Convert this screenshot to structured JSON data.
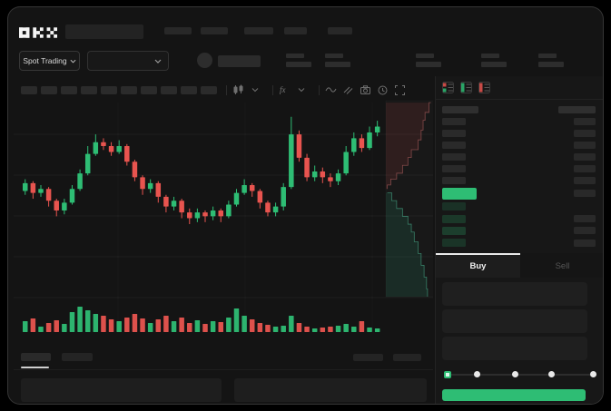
{
  "app": {
    "logo_text": "OKX"
  },
  "header": {
    "nav_placeholder_count": 5
  },
  "market_bar": {
    "market_selector_label": "Spot Trading",
    "stat_group_count": 5
  },
  "toolbar": {
    "placeholder_count": 10,
    "icons": [
      "candles-icon",
      "chevron-down-icon",
      "indicator-icon",
      "chevron-down-icon",
      "wave-icon",
      "draw-icon",
      "camera-icon",
      "clock-icon",
      "expand-icon"
    ],
    "separators_after": [
      1,
      3
    ]
  },
  "orderbook": {
    "mode_icons": [
      "book-both-icon",
      "book-bids-icon",
      "book-asks-icon"
    ],
    "ask_row_count": 6,
    "bid_row_count": 4,
    "bid_rows_with_amount": [
      1,
      2,
      3
    ],
    "bid_row_opacities": [
      0.16,
      0.2,
      0.24,
      0.18
    ],
    "last_price_color": "#2ebd74"
  },
  "trade_panel": {
    "tabs": [
      {
        "label": "Buy",
        "active": true
      },
      {
        "label": "Sell",
        "active": false
      }
    ],
    "input_count": 3,
    "slider": {
      "stops": 5,
      "active_stop": 0
    },
    "submit_color": "#2ebd74"
  },
  "bottom_bar": {
    "tab_placeholder_count": 2,
    "right_placeholder_count": 2,
    "panel_count": 2
  },
  "colors": {
    "up": "#2ebd74",
    "down": "#e8544f",
    "background": "#000000",
    "window": "#141414",
    "panel": "#171717",
    "placeholder": "#2a2a2a",
    "text": "#e8e8e8",
    "muted": "#565656",
    "depth_ask_fill": "rgba(190,70,70,0.14)",
    "depth_ask_line": "rgba(228,120,120,0.5)",
    "depth_bid_fill": "rgba(46,189,140,0.13)",
    "depth_bid_line": "rgba(80,200,160,0.55)"
  },
  "chart_data": [
    {
      "type": "candlestick",
      "title": "",
      "xlabel": "",
      "ylabel": "",
      "note": "no axis labels visible in mock; prices are unitless 0-100 estimates",
      "ylim": [
        30,
        100
      ],
      "candles_ohlc": [
        [
          57,
          63,
          55,
          61
        ],
        [
          61,
          62,
          53,
          56
        ],
        [
          56,
          60,
          54,
          58
        ],
        [
          58,
          59,
          49,
          52
        ],
        [
          52,
          53,
          44,
          47
        ],
        [
          47,
          53,
          45,
          51
        ],
        [
          51,
          60,
          50,
          58
        ],
        [
          58,
          68,
          57,
          66
        ],
        [
          66,
          80,
          65,
          76
        ],
        [
          76,
          86,
          75,
          82
        ],
        [
          82,
          84,
          78,
          80
        ],
        [
          80,
          82,
          75,
          77
        ],
        [
          77,
          83,
          76,
          80
        ],
        [
          80,
          81,
          70,
          72
        ],
        [
          72,
          73,
          62,
          64
        ],
        [
          64,
          65,
          55,
          58
        ],
        [
          58,
          63,
          56,
          61
        ],
        [
          61,
          62,
          51,
          54
        ],
        [
          54,
          55,
          46,
          49
        ],
        [
          49,
          54,
          47,
          52
        ],
        [
          52,
          53,
          43,
          46
        ],
        [
          46,
          48,
          40,
          43
        ],
        [
          43,
          48,
          41,
          46
        ],
        [
          46,
          47,
          41,
          44
        ],
        [
          44,
          49,
          42,
          47
        ],
        [
          47,
          48,
          41,
          44
        ],
        [
          44,
          52,
          43,
          50
        ],
        [
          50,
          58,
          49,
          56
        ],
        [
          56,
          63,
          55,
          60
        ],
        [
          60,
          61,
          54,
          57
        ],
        [
          57,
          58,
          48,
          51
        ],
        [
          51,
          52,
          44,
          46
        ],
        [
          46,
          51,
          44,
          49
        ],
        [
          49,
          61,
          47,
          59
        ],
        [
          59,
          95,
          58,
          86
        ],
        [
          86,
          88,
          72,
          74
        ],
        [
          74,
          76,
          62,
          64
        ],
        [
          64,
          70,
          62,
          67
        ],
        [
          67,
          69,
          61,
          64
        ],
        [
          64,
          66,
          59,
          62
        ],
        [
          62,
          68,
          60,
          66
        ],
        [
          66,
          80,
          65,
          77
        ],
        [
          77,
          87,
          75,
          84
        ],
        [
          84,
          86,
          77,
          79
        ],
        [
          79,
          90,
          78,
          87
        ],
        [
          87,
          93,
          85,
          90
        ]
      ]
    },
    {
      "type": "bar",
      "name": "volume",
      "note": "unitless heights, colored by candle direction",
      "values": [
        12,
        15,
        6,
        10,
        13,
        9,
        22,
        28,
        24,
        20,
        18,
        14,
        12,
        16,
        20,
        15,
        10,
        14,
        18,
        12,
        16,
        10,
        13,
        9,
        12,
        11,
        16,
        26,
        18,
        14,
        10,
        8,
        6,
        7,
        18,
        10,
        6,
        4,
        5,
        6,
        7,
        9,
        6,
        12,
        5,
        4
      ]
    },
    {
      "type": "area",
      "name": "depth",
      "orientation": "vertical (price on y, cumulative size on x)",
      "asks_line": [
        [
          0.92,
          0.01
        ],
        [
          0.88,
          0.06
        ],
        [
          0.8,
          0.1
        ],
        [
          0.76,
          0.15
        ],
        [
          0.72,
          0.2
        ],
        [
          0.66,
          0.25
        ],
        [
          0.52,
          0.29
        ],
        [
          0.45,
          0.33
        ],
        [
          0.34,
          0.37
        ],
        [
          0.22,
          0.4
        ],
        [
          0.1,
          0.43
        ],
        [
          0.03,
          0.45
        ]
      ],
      "bids_line": [
        [
          0.03,
          0.47
        ],
        [
          0.12,
          0.51
        ],
        [
          0.22,
          0.55
        ],
        [
          0.34,
          0.59
        ],
        [
          0.45,
          0.63
        ],
        [
          0.52,
          0.67
        ],
        [
          0.58,
          0.72
        ],
        [
          0.66,
          0.78
        ],
        [
          0.72,
          0.84
        ],
        [
          0.78,
          0.9
        ],
        [
          0.83,
          0.96
        ],
        [
          0.85,
          1.0
        ]
      ]
    }
  ]
}
